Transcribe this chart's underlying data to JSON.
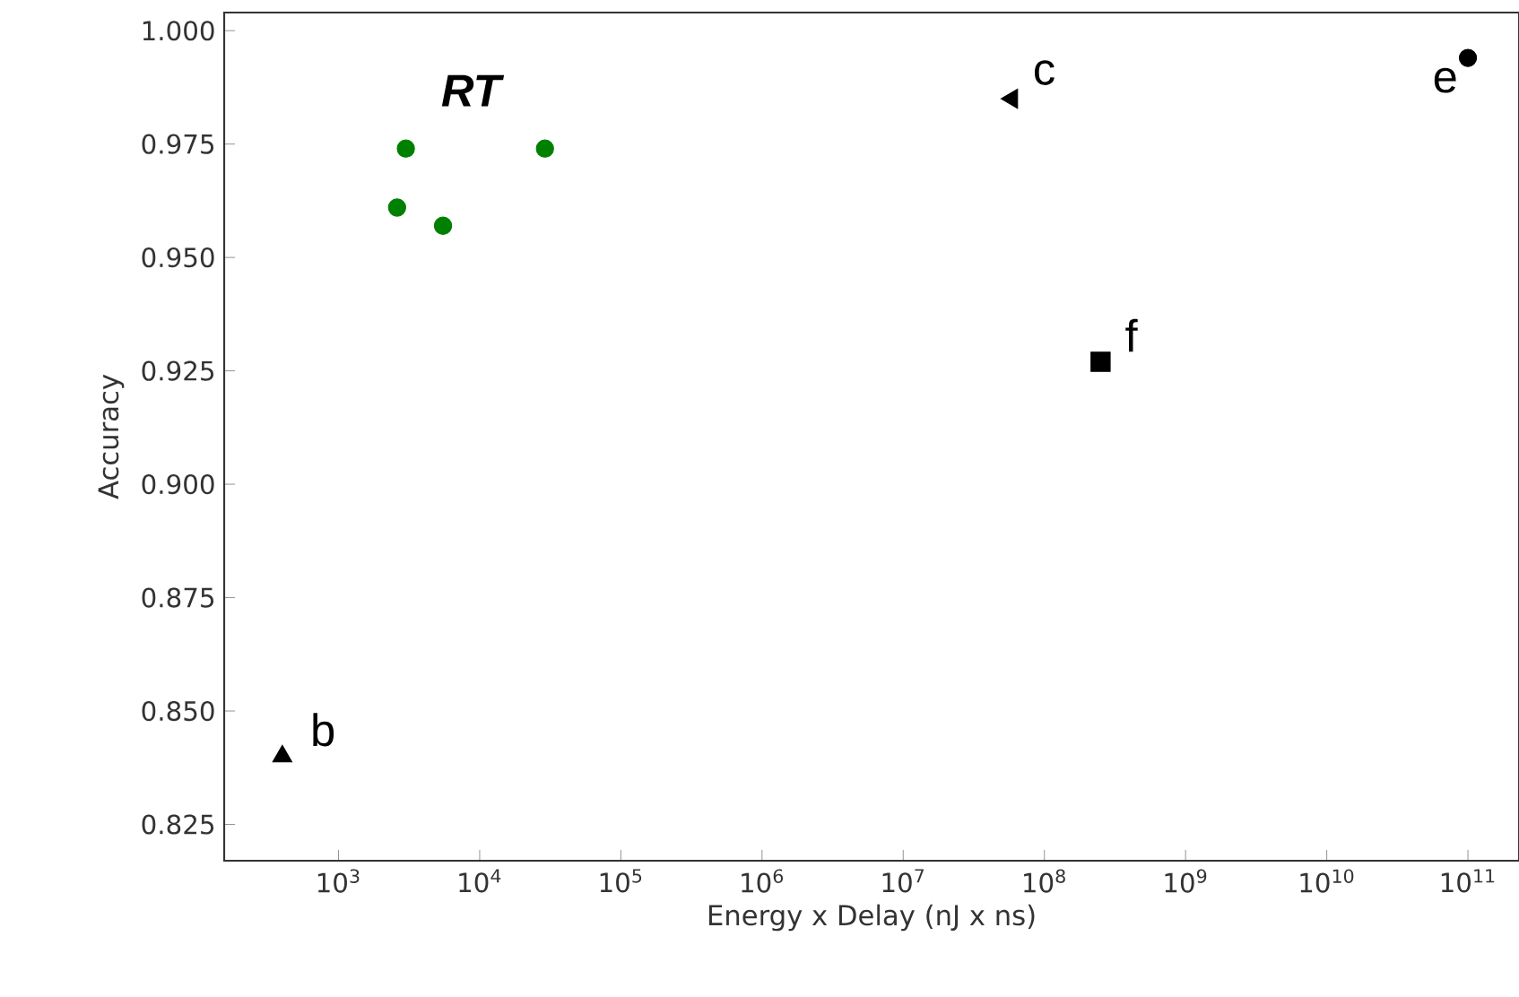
{
  "chart_data": {
    "type": "scatter",
    "xlabel": "Energy x Delay (nJ x ns)",
    "ylabel": "Accuracy",
    "log": "x",
    "xlim": [
      155,
      230000000000.0
    ],
    "ylim": [
      0.817,
      1.004
    ],
    "xticks": [
      {
        "value": 1000,
        "label": "10$^{3}$"
      },
      {
        "value": 10000,
        "label": "10$^{4}$"
      },
      {
        "value": 100000,
        "label": "10$^{5}$"
      },
      {
        "value": 1000000,
        "label": "10$^{6}$"
      },
      {
        "value": 10000000,
        "label": "10$^{7}$"
      },
      {
        "value": 100000000,
        "label": "10$^{8}$"
      },
      {
        "value": 1000000000,
        "label": "10$^{9}$"
      },
      {
        "value": 10000000000,
        "label": "10$^{10}$"
      },
      {
        "value": 100000000000,
        "label": "10$^{11}$"
      }
    ],
    "yticks": [
      {
        "value": 0.825,
        "label": "0.825"
      },
      {
        "value": 0.85,
        "label": "0.850"
      },
      {
        "value": 0.875,
        "label": "0.875"
      },
      {
        "value": 0.9,
        "label": "0.900"
      },
      {
        "value": 0.925,
        "label": "0.925"
      },
      {
        "value": 0.95,
        "label": "0.950"
      },
      {
        "value": 0.975,
        "label": "0.975"
      },
      {
        "value": 1.0,
        "label": "1.000"
      }
    ],
    "series": [
      {
        "name": "RT",
        "color": "#008000",
        "marker": "circle",
        "x": [
          3000,
          29000,
          2600,
          5500
        ],
        "values": [
          0.974,
          0.974,
          0.961,
          0.957
        ]
      },
      {
        "name": "b",
        "color": "#000000",
        "marker": "triangle",
        "x": [
          400
        ],
        "values": [
          0.84
        ]
      },
      {
        "name": "c",
        "color": "#000000",
        "marker": "triangle",
        "x": [
          59000000
        ],
        "values": [
          0.985
        ]
      },
      {
        "name": "e",
        "color": "#000000",
        "marker": "circle",
        "x": [
          100000000000
        ],
        "values": [
          0.994
        ]
      },
      {
        "name": "f",
        "color": "#000000",
        "marker": "square",
        "x": [
          250000000
        ],
        "values": [
          0.927
        ]
      }
    ]
  }
}
